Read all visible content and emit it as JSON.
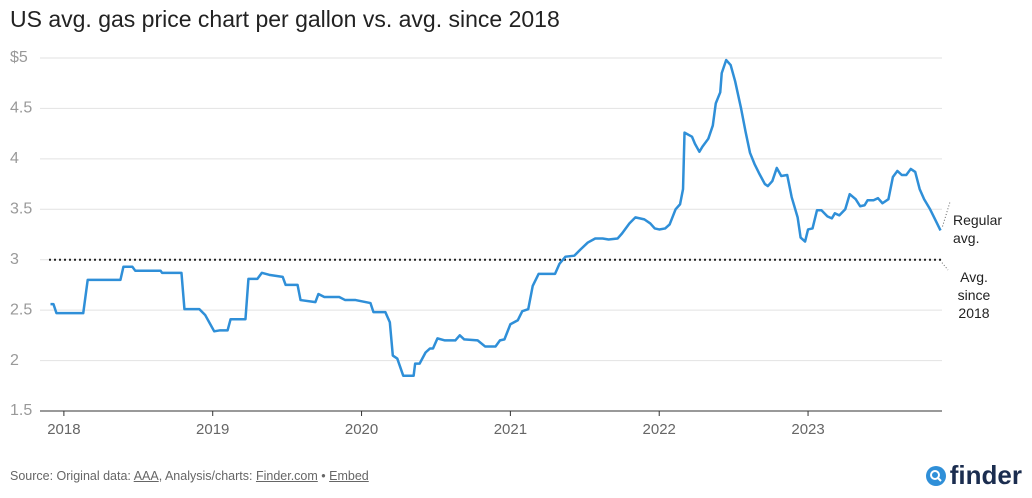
{
  "chart_data": {
    "type": "line",
    "title": "US avg. gas price chart per gallon vs. avg. since 2018",
    "x": [
      2017.91,
      2017.93,
      2017.95,
      2018.13,
      2018.16,
      2018.38,
      2018.4,
      2018.46,
      2018.48,
      2018.65,
      2018.66,
      2018.79,
      2018.81,
      2018.91,
      2018.95,
      2018.98,
      2019.01,
      2019.05,
      2019.1,
      2019.12,
      2019.22,
      2019.24,
      2019.3,
      2019.33,
      2019.38,
      2019.47,
      2019.49,
      2019.57,
      2019.59,
      2019.69,
      2019.71,
      2019.75,
      2019.85,
      2019.89,
      2019.96,
      2020.06,
      2020.08,
      2020.16,
      2020.19,
      2020.21,
      2020.24,
      2020.28,
      2020.35,
      2020.36,
      2020.39,
      2020.43,
      2020.46,
      2020.48,
      2020.51,
      2020.56,
      2020.63,
      2020.66,
      2020.69,
      2020.78,
      2020.83,
      2020.9,
      2020.93,
      2020.96,
      2021.0,
      2021.05,
      2021.08,
      2021.12,
      2021.15,
      2021.19,
      2021.23,
      2021.3,
      2021.33,
      2021.37,
      2021.43,
      2021.47,
      2021.52,
      2021.57,
      2021.62,
      2021.66,
      2021.72,
      2021.75,
      2021.8,
      2021.84,
      2021.9,
      2021.94,
      2021.97,
      2022.0,
      2022.04,
      2022.07,
      2022.11,
      2022.14,
      2022.16,
      2022.17,
      2022.22,
      2022.24,
      2022.27,
      2022.29,
      2022.33,
      2022.36,
      2022.38,
      2022.41,
      2022.42,
      2022.45,
      2022.48,
      2022.51,
      2022.55,
      2022.58,
      2022.61,
      2022.64,
      2022.67,
      2022.71,
      2022.73,
      2022.76,
      2022.79,
      2022.82,
      2022.86,
      2022.89,
      2022.93,
      2022.95,
      2022.98,
      2023.0,
      2023.03,
      2023.06,
      2023.09,
      2023.13,
      2023.16,
      2023.18,
      2023.21,
      2023.25,
      2023.28,
      2023.32,
      2023.35,
      2023.38,
      2023.4,
      2023.44,
      2023.47,
      2023.5,
      2023.54,
      2023.57,
      2023.6,
      2023.63,
      2023.66,
      2023.69,
      2023.72,
      2023.75,
      2023.78,
      2023.82,
      2023.85,
      2023.89
    ],
    "series": [
      {
        "name": "Regular avg.",
        "color": "#2f8fd8",
        "values": [
          2.56,
          2.56,
          2.47,
          2.47,
          2.8,
          2.8,
          2.93,
          2.93,
          2.89,
          2.89,
          2.87,
          2.87,
          2.51,
          2.51,
          2.45,
          2.37,
          2.29,
          2.3,
          2.3,
          2.41,
          2.41,
          2.81,
          2.81,
          2.87,
          2.85,
          2.83,
          2.75,
          2.75,
          2.6,
          2.58,
          2.66,
          2.63,
          2.63,
          2.6,
          2.6,
          2.57,
          2.48,
          2.48,
          2.38,
          2.05,
          2.02,
          1.85,
          1.85,
          1.97,
          1.97,
          2.08,
          2.12,
          2.12,
          2.22,
          2.2,
          2.2,
          2.25,
          2.21,
          2.2,
          2.14,
          2.14,
          2.2,
          2.21,
          2.36,
          2.4,
          2.49,
          2.51,
          2.74,
          2.86,
          2.86,
          2.86,
          2.96,
          3.03,
          3.04,
          3.1,
          3.17,
          3.21,
          3.21,
          3.2,
          3.21,
          3.26,
          3.36,
          3.42,
          3.4,
          3.36,
          3.31,
          3.3,
          3.31,
          3.35,
          3.5,
          3.55,
          3.7,
          4.26,
          4.22,
          4.15,
          4.07,
          4.12,
          4.2,
          4.33,
          4.55,
          4.66,
          4.85,
          4.98,
          4.93,
          4.77,
          4.5,
          4.27,
          4.06,
          3.95,
          3.86,
          3.75,
          3.73,
          3.78,
          3.91,
          3.83,
          3.84,
          3.62,
          3.42,
          3.22,
          3.18,
          3.3,
          3.31,
          3.49,
          3.49,
          3.43,
          3.41,
          3.46,
          3.44,
          3.5,
          3.65,
          3.6,
          3.53,
          3.54,
          3.59,
          3.59,
          3.61,
          3.56,
          3.6,
          3.82,
          3.88,
          3.84,
          3.84,
          3.9,
          3.87,
          3.7,
          3.6,
          3.5,
          3.41,
          3.29
        ]
      }
    ],
    "reference_line": {
      "value": 3,
      "label": "Avg. since 2018",
      "color": "#222222"
    },
    "xlim": [
      2017.9,
      2023.9
    ],
    "xticks": [
      2018,
      2019,
      2020,
      2021,
      2022,
      2023
    ],
    "ylim": [
      1.5,
      5
    ],
    "yticks": [
      1.5,
      2,
      2.5,
      3,
      3.5,
      4,
      4.5,
      {
        "value": 5,
        "label": "$5"
      }
    ],
    "grid": true
  },
  "footer": {
    "prefix": "Source: Original data: ",
    "link1": "AAA",
    "middle": ", Analysis/charts: ",
    "link2": "Finder.com",
    "sep": " • ",
    "link3": "Embed"
  },
  "logo": "finder"
}
